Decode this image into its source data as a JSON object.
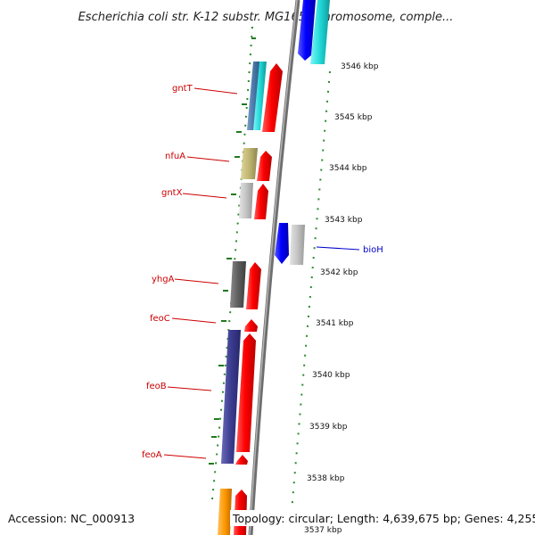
{
  "title": "Escherichia coli str. K-12 substr. MG1655 chromosome, comple...",
  "footer": {
    "accession": "Accession: NC_000913",
    "summary": "Topology: circular; Length: 4,639,675 bp; Genes: 4,255"
  },
  "colors": {
    "backbone": "#8c8c8c",
    "dots": "#2a8a2a",
    "label_red": "#cc0000",
    "label_blue": "#0000cc"
  },
  "ruler": [
    {
      "label": "3546 kbp"
    },
    {
      "label": "3545 kbp"
    },
    {
      "label": "3544 kbp"
    },
    {
      "label": "3543 kbp"
    },
    {
      "label": "3542 kbp"
    },
    {
      "label": "3541 kbp"
    },
    {
      "label": "3540 kbp"
    },
    {
      "label": "3539 kbp"
    },
    {
      "label": "3538 kbp"
    },
    {
      "label": "3537 kbp"
    }
  ],
  "gene_labels": [
    {
      "name": "gntT",
      "color": "#cc0000"
    },
    {
      "name": "nfuA",
      "color": "#cc0000"
    },
    {
      "name": "gntX",
      "color": "#cc0000"
    },
    {
      "name": "bioH",
      "color": "#0000cc"
    },
    {
      "name": "yhgA",
      "color": "#cc0000"
    },
    {
      "name": "feoC",
      "color": "#cc0000"
    },
    {
      "name": "feoB",
      "color": "#cc0000"
    },
    {
      "name": "feoA",
      "color": "#cc0000"
    }
  ]
}
